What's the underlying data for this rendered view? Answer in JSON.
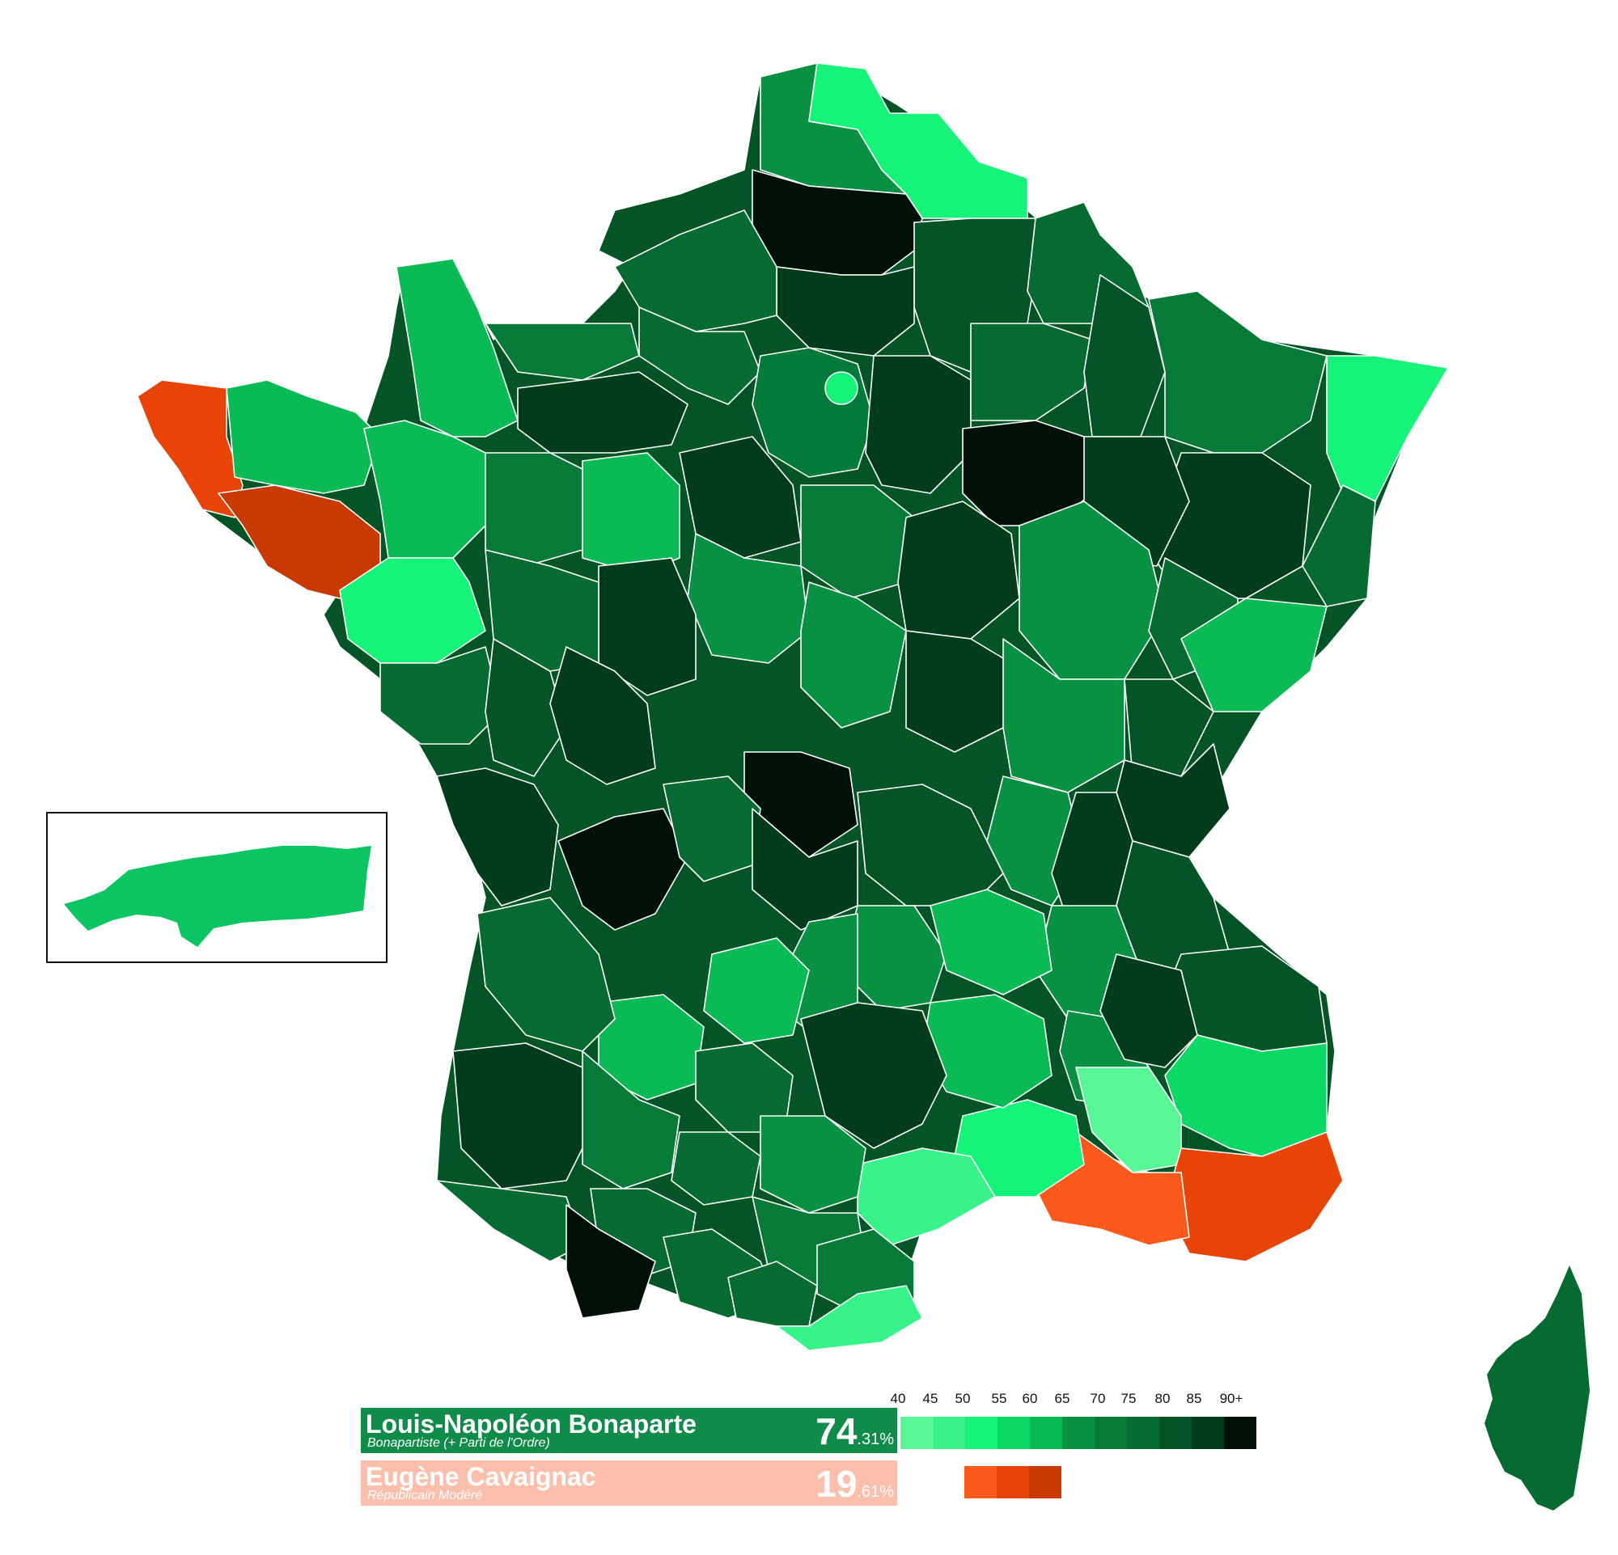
{
  "candidates": [
    {
      "name": "Louis-Napoléon Bonaparte",
      "party": "Bonapartiste (+ Parti de l'Ordre)",
      "percent_int": "74",
      "percent_dec": ".31%",
      "color": "#0f8c49"
    },
    {
      "name": "Eugène Cavaignac",
      "party": "Républicain Modéré",
      "percent_int": "19",
      "percent_dec": ".61%",
      "color": "#fbbfac"
    }
  ],
  "legend": {
    "green_ticks": [
      "40",
      "45",
      "50",
      "55",
      "60",
      "65",
      "70",
      "75",
      "80",
      "85",
      "90+"
    ],
    "green_colors": [
      "#58f796",
      "#37f38a",
      "#15f479",
      "#0bd865",
      "#0aba55",
      "#089043",
      "#077a38",
      "#056b30",
      "#045426",
      "#023d1b",
      "#011108"
    ],
    "orange_colors": [
      "#fb5a1c",
      "#e84408",
      "#c93904"
    ]
  },
  "map_colors": {
    "bonaparte_levels": [
      "#58f796",
      "#37f38a",
      "#15f479",
      "#0bd865",
      "#0aba55",
      "#089043",
      "#077a38",
      "#056b30",
      "#045426",
      "#023d1b",
      "#011108"
    ],
    "cavaignac_levels": [
      "#fb5a1c",
      "#e84408",
      "#c93904"
    ],
    "border": "#ffffff"
  },
  "inset": {
    "color": "#0bc563"
  }
}
